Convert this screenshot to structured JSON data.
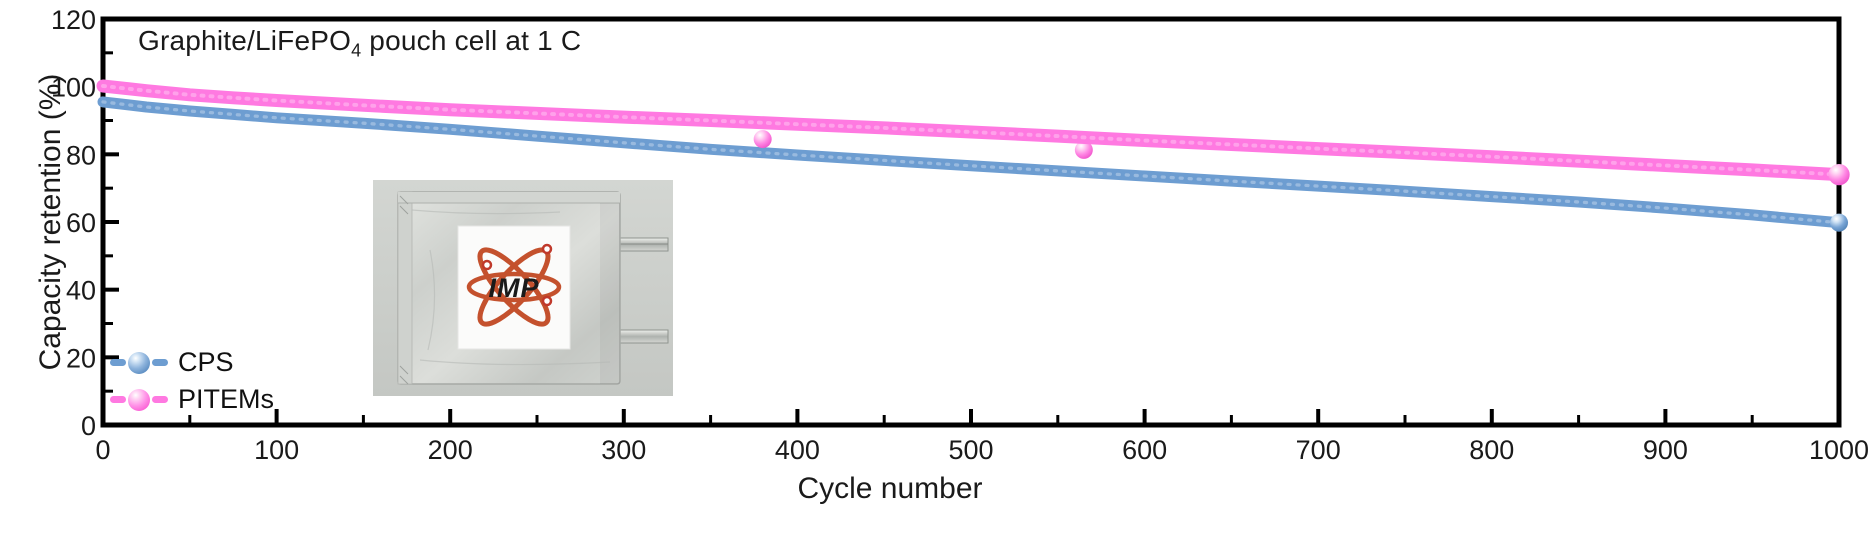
{
  "figure": {
    "annotation": {
      "prefix": "Graphite/LiFePO",
      "sub": "4",
      "suffix": " pouch cell at 1 C"
    },
    "inset_logo_text": "IMP"
  },
  "chart_data": {
    "type": "scatter",
    "title": "Graphite/LiFePO4 pouch cell at 1 C",
    "xlabel": "Cycle number",
    "ylabel": "Capacity retention (%)",
    "xlim": [
      0,
      1000
    ],
    "ylim": [
      0,
      120
    ],
    "x_major_ticks": [
      0,
      100,
      200,
      300,
      400,
      500,
      600,
      700,
      800,
      900,
      1000
    ],
    "x_minor_ticks": [
      50,
      150,
      250,
      350,
      450,
      550,
      650,
      750,
      850,
      950
    ],
    "y_major_ticks": [
      0,
      20,
      40,
      60,
      80,
      100,
      120
    ],
    "y_minor_ticks": [
      10,
      30,
      50,
      70,
      90,
      110
    ],
    "grid": false,
    "legend_position": "lower-left",
    "x": [
      0,
      25,
      50,
      75,
      100,
      150,
      200,
      250,
      300,
      350,
      400,
      450,
      500,
      550,
      600,
      650,
      700,
      750,
      800,
      850,
      900,
      950,
      1000
    ],
    "series": [
      {
        "name": "CPS",
        "color": "#6d9dd1",
        "values": [
          95.5,
          94.0,
          92.8,
          91.8,
          90.8,
          89.2,
          87.4,
          85.4,
          83.4,
          81.5,
          79.8,
          78.2,
          76.6,
          75.1,
          73.6,
          72.1,
          70.6,
          69.1,
          67.5,
          65.9,
          64.1,
          62.1,
          59.8
        ]
      },
      {
        "name": "PITEMs",
        "color": "#ff79e1",
        "values": [
          100.2,
          98.8,
          97.6,
          96.7,
          95.9,
          94.5,
          93.2,
          92.1,
          91.0,
          90.0,
          88.9,
          87.8,
          86.6,
          85.4,
          84.1,
          82.9,
          81.7,
          80.5,
          79.3,
          78.0,
          76.7,
          75.4,
          74.0
        ],
        "outlier_points": [
          [
            380,
            84.5
          ],
          [
            565,
            81.3
          ]
        ]
      }
    ]
  }
}
